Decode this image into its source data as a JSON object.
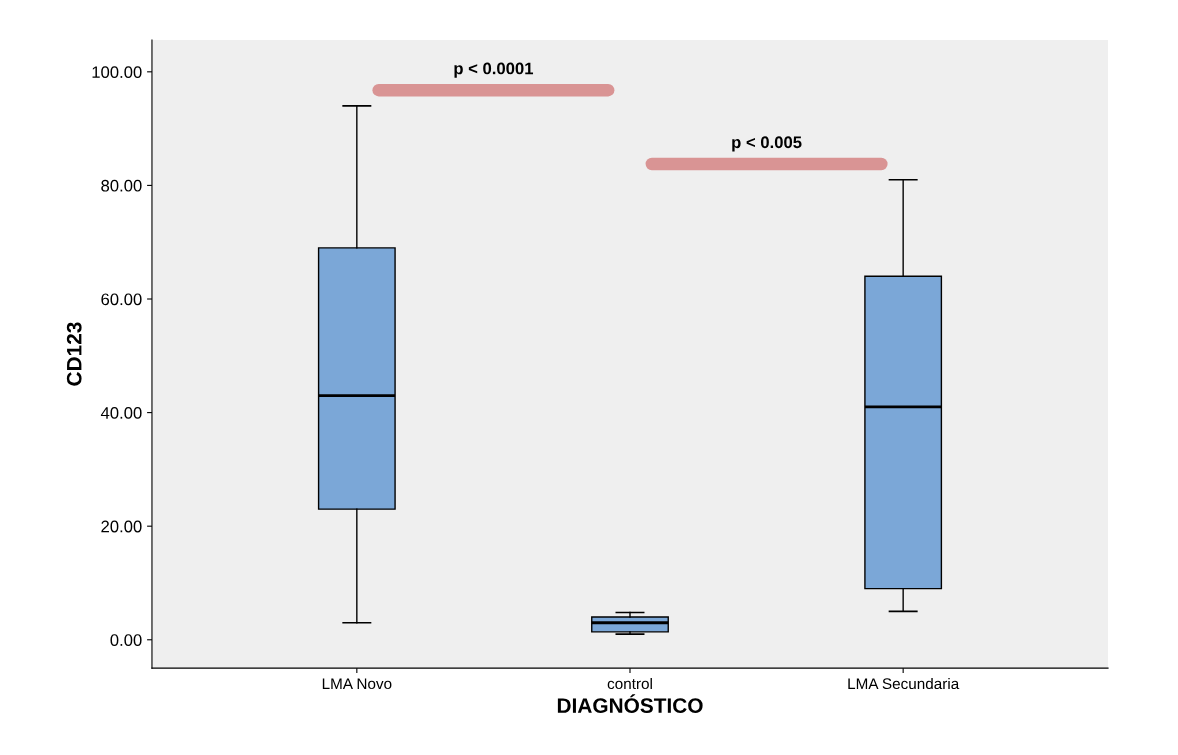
{
  "chart_data": {
    "type": "box",
    "xlabel": "DIAGNÓSTICO",
    "ylabel": "CD123",
    "categories": [
      "LMA Novo",
      "control",
      "LMA Secundaria"
    ],
    "boxes": [
      {
        "low": 3,
        "q1": 23,
        "median": 43,
        "q3": 69,
        "high": 94
      },
      {
        "low": 1,
        "q1": 1.4,
        "median": 3,
        "q3": 4,
        "high": 4.8
      },
      {
        "low": 5,
        "q1": 9,
        "median": 41,
        "q3": 64,
        "high": 81
      }
    ],
    "color": "#7ba7d7",
    "ylim": [
      -5,
      105.6
    ],
    "yticks": [
      {
        "value": 0,
        "label": "0.00"
      },
      {
        "value": 20,
        "label": "20.00"
      },
      {
        "value": 40,
        "label": "40.00"
      },
      {
        "value": 60,
        "label": "60.00"
      },
      {
        "value": 80,
        "label": "80.00"
      },
      {
        "value": 100,
        "label": "100.00"
      }
    ],
    "annotations": [
      "p < 0.0001",
      "p < 0.005"
    ],
    "grid": false
  }
}
